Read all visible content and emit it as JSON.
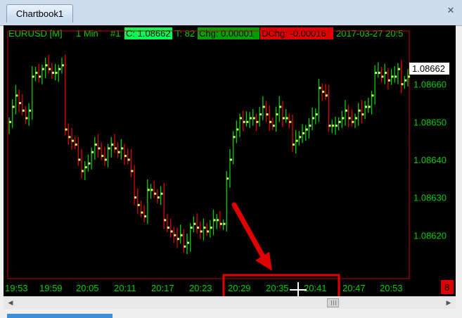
{
  "tabbar": {
    "tab_label": "Chartbook1"
  },
  "header": {
    "symbol": "EURUSD [M]",
    "interval": "1 Min",
    "chart_num": "#1",
    "close": "C: 1.08662",
    "ticks": "T: 82",
    "chg": "Chg: 0.00001",
    "dchg": "DChg: -0.00016",
    "datetime": "2017-03-27 20:5"
  },
  "colors": {
    "up": "#00d000",
    "down": "#e00000",
    "tick_up": "#ccff66",
    "grid_text": "#00cc00",
    "close_bg": "#00ff55",
    "chg_bg": "#00a000",
    "dchg_bg": "#e00000",
    "annotation": "#e00000"
  },
  "price_label": "1.08662",
  "corner_badge": "8",
  "icons": [
    "close-icon",
    "scroll-left-icon",
    "scroll-right-icon",
    "crosshair-icon",
    "arrow-annotation"
  ],
  "chart_data": {
    "type": "ohlc",
    "ylim": [
      1.0861,
      1.0867
    ],
    "y_ticks": [
      "1.08660",
      "1.08650",
      "1.08640",
      "1.08630",
      "1.08620"
    ],
    "x_ticks": [
      "19:53",
      "19:59",
      "20:05",
      "20:11",
      "20:17",
      "20:23",
      "20:29",
      "20:35",
      "20:41",
      "20:47",
      "20:53"
    ],
    "last_price": 1.08662,
    "closes": [
      1.0865,
      1.08654,
      1.08657,
      1.08655,
      1.08653,
      1.08651,
      1.08653,
      1.08662,
      1.08663,
      1.08662,
      1.08664,
      1.08665,
      1.08664,
      1.08663,
      1.08663,
      1.08664,
      1.08665,
      1.08648,
      1.08646,
      1.08645,
      1.08644,
      1.0864,
      1.08637,
      1.08638,
      1.08639,
      1.08642,
      1.08644,
      1.08643,
      1.08641,
      1.0864,
      1.08643,
      1.08644,
      1.08643,
      1.08642,
      1.08643,
      1.08641,
      1.0864,
      1.08637,
      1.0863,
      1.08628,
      1.08626,
      1.08625,
      1.08632,
      1.08632,
      1.08631,
      1.0863,
      1.08631,
      1.08624,
      1.08622,
      1.08621,
      1.0862,
      1.08619,
      1.0862,
      1.08617,
      1.08618,
      1.08622,
      1.08623,
      1.08622,
      1.08621,
      1.08622,
      1.08621,
      1.08622,
      1.08624,
      1.08624,
      1.08623,
      1.08623,
      1.08635,
      1.0864,
      1.08646,
      1.08648,
      1.08651,
      1.0865,
      1.0865,
      1.08651,
      1.08651,
      1.0865,
      1.08652,
      1.08654,
      1.08652,
      1.0865,
      1.08649,
      1.08652,
      1.08654,
      1.08651,
      1.08651,
      1.0865,
      1.08644,
      1.08645,
      1.08646,
      1.08647,
      1.08648,
      1.08649,
      1.08651,
      1.08652,
      1.08659,
      1.08658,
      1.08657,
      1.08649,
      1.08649,
      1.08649,
      1.0865,
      1.08651,
      1.08653,
      1.08651,
      1.0865,
      1.08651,
      1.08653,
      1.08652,
      1.08654,
      1.08654,
      1.08657,
      1.08663,
      1.08663,
      1.08662,
      1.08663,
      1.08661,
      1.08662,
      1.08662,
      1.08664,
      1.0866,
      1.08661,
      1.08662
    ],
    "direction": "up_green_down_red"
  },
  "annotation": {
    "arrow": "red arrow pointing at time axis",
    "box": "red highlight rectangle around time axis labels"
  }
}
